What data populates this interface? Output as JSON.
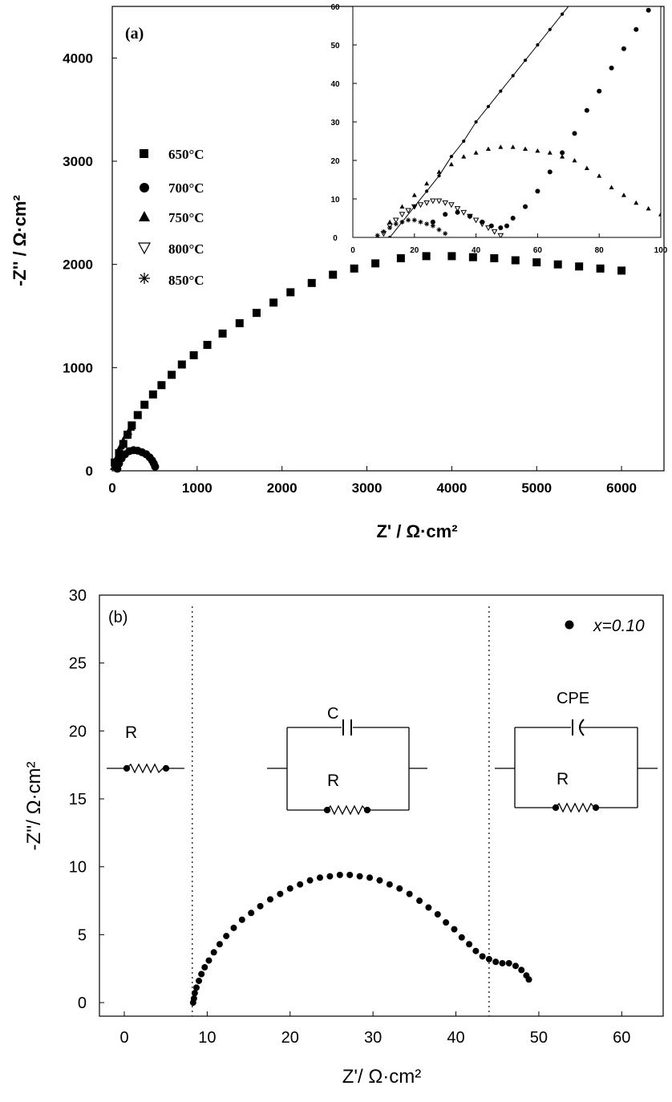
{
  "chart_data": [
    {
      "type": "scatter",
      "panel_label": "(a)",
      "xlabel": "Z' / Ω·cm²",
      "ylabel": "-Z'' / Ω·cm²",
      "xlim": [
        0,
        6500
      ],
      "ylim": [
        0,
        4500
      ],
      "x_ticks": [
        0,
        1000,
        2000,
        3000,
        4000,
        5000,
        6000
      ],
      "y_ticks": [
        0,
        1000,
        2000,
        3000,
        4000
      ],
      "legend_position": "left",
      "series": [
        {
          "name": "650°C",
          "marker": "square",
          "x": [
            30,
            80,
            130,
            180,
            230,
            300,
            380,
            480,
            580,
            700,
            820,
            960,
            1120,
            1300,
            1500,
            1700,
            1900,
            2100,
            2350,
            2600,
            2850,
            3100,
            3400,
            3700,
            4000,
            4250,
            4500,
            4750,
            5000,
            5250,
            5500,
            5750,
            6000
          ],
          "y": [
            80,
            170,
            260,
            350,
            440,
            540,
            640,
            740,
            830,
            930,
            1030,
            1120,
            1220,
            1330,
            1430,
            1530,
            1630,
            1730,
            1820,
            1900,
            1960,
            2010,
            2060,
            2080,
            2080,
            2070,
            2060,
            2040,
            2020,
            2000,
            1980,
            1960,
            1940
          ]
        },
        {
          "name": "700°C",
          "marker": "circle",
          "x": [
            60,
            80,
            110,
            150,
            200,
            250,
            300,
            350,
            400,
            440,
            470,
            490,
            505
          ],
          "y": [
            20,
            70,
            120,
            160,
            190,
            200,
            195,
            180,
            160,
            130,
            100,
            70,
            40
          ]
        },
        {
          "name": "750°C",
          "marker": "triangle",
          "x": [
            20,
            40,
            60,
            80,
            100,
            130,
            160,
            190,
            220
          ],
          "y": [
            40,
            90,
            140,
            190,
            240,
            290,
            340,
            380,
            420
          ]
        },
        {
          "name": "800°C",
          "marker": "triangle-down-open",
          "x": [],
          "y": []
        },
        {
          "name": "850°C",
          "marker": "asterisk",
          "x": [],
          "y": []
        }
      ],
      "inset": {
        "xlim": [
          0,
          100
        ],
        "ylim": [
          0,
          60
        ],
        "x_ticks": [
          0,
          20,
          40,
          60,
          80,
          100
        ],
        "y_ticks": [
          0,
          10,
          20,
          30,
          40,
          50,
          60
        ],
        "series": [
          {
            "name": "650°C",
            "marker": "circle-small",
            "line": true,
            "x": [
              12,
              16,
              20,
              24,
              28,
              32,
              36,
              40,
              44,
              48,
              52,
              56,
              60,
              64,
              68,
              72
            ],
            "y": [
              0,
              4,
              8,
              12,
              16,
              21,
              25,
              30,
              34,
              38,
              42,
              46,
              50,
              54,
              58,
              62
            ]
          },
          {
            "name": "700°C",
            "marker": "circle",
            "x": [
              26,
              30,
              34,
              38,
              42,
              45,
              48,
              50,
              52,
              56,
              60,
              64,
              68,
              72,
              76,
              80,
              84,
              88,
              92,
              96
            ],
            "y": [
              4,
              6,
              6.5,
              5.5,
              4,
              3,
              2.5,
              3,
              5,
              8,
              12,
              17,
              22,
              27,
              33,
              38,
              44,
              49,
              54,
              59
            ]
          },
          {
            "name": "750°C",
            "marker": "triangle",
            "x": [
              8,
              12,
              16,
              20,
              24,
              28,
              32,
              36,
              40,
              44,
              48,
              52,
              56,
              60,
              64,
              68,
              72,
              76,
              80,
              84,
              88,
              92,
              96,
              100
            ],
            "y": [
              0,
              4,
              8,
              11,
              14,
              17,
              19,
              21,
              22,
              23,
              23.5,
              23.5,
              23,
              22.5,
              22,
              21,
              20,
              18,
              16,
              13,
              11,
              9,
              7.5,
              6
            ]
          },
          {
            "name": "800°C",
            "marker": "triangle-down-open",
            "x": [
              10,
              12,
              14,
              16,
              18,
              20,
              22,
              24,
              26,
              28,
              30,
              32,
              34,
              36,
              38,
              40,
              42,
              44,
              46,
              48
            ],
            "y": [
              1,
              3,
              4.5,
              6,
              7,
              8,
              8.5,
              9,
              9.5,
              9.5,
              9,
              8.5,
              7.5,
              6.5,
              5.5,
              4.5,
              3.5,
              2.5,
              1.5,
              0.5
            ]
          },
          {
            "name": "850°C",
            "marker": "asterisk",
            "x": [
              8,
              10,
              12,
              14,
              16,
              18,
              20,
              22,
              24,
              26,
              28,
              30
            ],
            "y": [
              0.5,
              1.5,
              2.5,
              3.5,
              4,
              4.5,
              4.5,
              4,
              3.5,
              3,
              2,
              1
            ]
          }
        ]
      }
    },
    {
      "type": "scatter",
      "panel_label": "(b)",
      "xlabel": "Z'/ Ω·cm²",
      "ylabel": "-Z''/ Ω·cm²",
      "xlim": [
        -3,
        65
      ],
      "ylim": [
        -1,
        30
      ],
      "x_ticks": [
        0,
        10,
        20,
        30,
        40,
        50,
        60
      ],
      "y_ticks": [
        0,
        5,
        10,
        15,
        20,
        25,
        30
      ],
      "legend_position": "top-right",
      "vertical_dotted_lines_x": [
        8.2,
        44.0
      ],
      "series": [
        {
          "name": "x=0.10",
          "marker": "circle",
          "x": [
            8.3,
            8.4,
            8.5,
            8.7,
            9.0,
            9.3,
            9.7,
            10.2,
            10.8,
            11.5,
            12.3,
            13.2,
            14.2,
            15.3,
            16.4,
            17.6,
            18.8,
            20.0,
            21.2,
            22.4,
            23.6,
            24.8,
            26.0,
            27.2,
            28.4,
            29.6,
            30.8,
            32.0,
            33.2,
            34.4,
            35.6,
            36.7,
            37.8,
            38.8,
            39.8,
            40.7,
            41.6,
            42.4,
            43.2,
            44.0,
            44.8,
            45.6,
            46.4,
            47.2,
            47.9,
            48.5,
            48.8
          ],
          "y": [
            0.0,
            0.3,
            0.7,
            1.1,
            1.6,
            2.1,
            2.6,
            3.1,
            3.7,
            4.3,
            4.9,
            5.5,
            6.1,
            6.6,
            7.1,
            7.6,
            8.0,
            8.4,
            8.7,
            9.0,
            9.2,
            9.3,
            9.4,
            9.4,
            9.3,
            9.2,
            9.0,
            8.7,
            8.4,
            8.0,
            7.5,
            7.0,
            6.5,
            5.9,
            5.4,
            4.8,
            4.3,
            3.8,
            3.4,
            3.2,
            3.0,
            2.9,
            2.9,
            2.7,
            2.4,
            2.0,
            1.7
          ]
        }
      ],
      "circuit_labels": {
        "r1": "R",
        "c": "C",
        "r2": "R",
        "cpe": "CPE",
        "r3": "R"
      }
    }
  ]
}
